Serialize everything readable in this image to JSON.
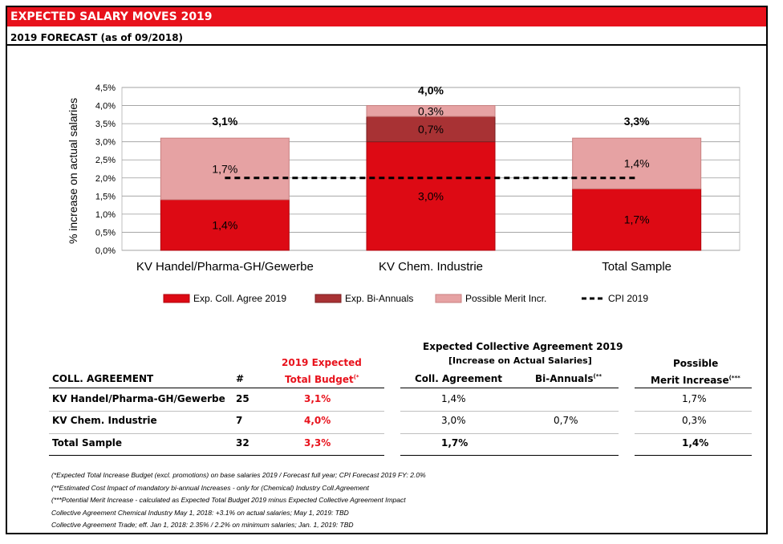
{
  "header": {
    "title": "EXPECTED SALARY MOVES 2019",
    "subtitle": "2019 FORECAST (as of 09/2018)"
  },
  "colors": {
    "brand_red": "#e8121c",
    "coll": "#dd0a14",
    "biannual": "#a83234",
    "merit": "#e6a2a3",
    "cpi": "#000000"
  },
  "chart_data": {
    "type": "bar",
    "stacked": true,
    "categories": [
      "KV Handel/Pharma-GH/Gewerbe",
      "KV Chem. Industrie",
      "Total Sample"
    ],
    "series": [
      {
        "name": "Exp. Coll. Agree 2019",
        "values": [
          1.4,
          3.0,
          1.7
        ],
        "labels": [
          "1,4%",
          "3,0%",
          "1,7%"
        ]
      },
      {
        "name": "Exp. Bi-Annuals",
        "values": [
          0,
          0.7,
          0
        ],
        "labels": [
          "",
          "0,7%",
          ""
        ]
      },
      {
        "name": "Possible Merit Incr.",
        "values": [
          1.7,
          0.3,
          1.4
        ],
        "labels": [
          "1,7%",
          "0,3%",
          "1,4%"
        ]
      }
    ],
    "totals": [
      "3,1%",
      "4,0%",
      "3,3%"
    ],
    "cpi": {
      "name": "CPI 2019",
      "value": 2.0
    },
    "ylabel": "% increase on actual salaries",
    "ylim": [
      0,
      4.5
    ],
    "yticks": [
      "0,0%",
      "0,5%",
      "1,0%",
      "1,5%",
      "2,0%",
      "2,5%",
      "3,0%",
      "3,5%",
      "4,0%",
      "4,5%"
    ],
    "legend": [
      "Exp. Coll. Agree 2019",
      "Exp. Bi-Annuals",
      "Possible Merit Incr.",
      "CPI 2019"
    ]
  },
  "table": {
    "group_header_line1": "Expected Collective Agreement 2019",
    "group_header_line2": "[Increase on Actual Salaries]",
    "budget_header_line1": "2019 Expected",
    "budget_header_line2": "Total Budget",
    "budget_header_sup": "(*",
    "merit_header_line1": "Possible",
    "merit_header_line2": "Merit Increase",
    "merit_header_sup": "(***",
    "col_agreement": "COLL. AGREEMENT",
    "col_count": "#",
    "col_coll": "Coll. Agreement",
    "col_biannual": "Bi-Annuals",
    "col_biannual_sup": "(**",
    "rows": [
      {
        "name": "KV Handel/Pharma-GH/Gewerbe",
        "count": "25",
        "budget": "3,1%",
        "coll": "1,4%",
        "biannual": "",
        "merit": "1,7%"
      },
      {
        "name": "KV Chem. Industrie",
        "count": "7",
        "budget": "4,0%",
        "coll": "3,0%",
        "biannual": "0,7%",
        "merit": "0,3%"
      },
      {
        "name": "Total Sample",
        "count": "32",
        "budget": "3,3%",
        "coll": "1,7%",
        "biannual": "",
        "merit": "1,4%"
      }
    ]
  },
  "notes": [
    "(*Expected Total Increase Budget (excl. promotions) on base salaries 2019 / Forecast full year;  CPI Forecast 2019 FY: 2.0%",
    "(**Estimated Cost Impact of mandatory bi-annual Increases - only for (Chemical) Industry Coll.Agreement",
    "(***Potential Merit Increase - calculated as Expected Total Budget 2019 minus Expected Collective Agreement Impact",
    "Collective Agreement Chemical Industry May 1, 2018: +3.1% on actual salaries; May 1, 2019: TBD",
    "Collective Agreement Trade;  eff. Jan 1, 2018: 2.35% / 2.2% on minimum salaries; Jan. 1, 2019: TBD"
  ]
}
